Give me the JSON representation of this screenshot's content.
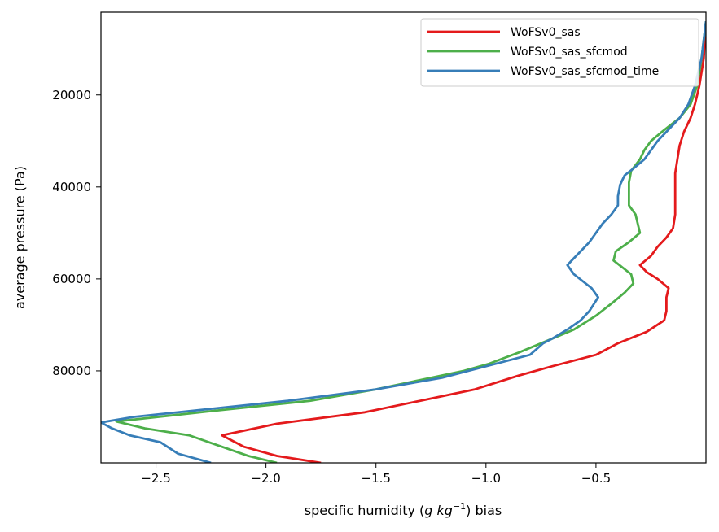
{
  "chart_data": {
    "type": "line",
    "title": "",
    "xlabel": "specific humidity (",
    "xlabel_unit": "g kg",
    "xlabel_exp": "−1",
    "xlabel_suffix": ") bias",
    "ylabel": "average pressure (Pa)",
    "xlim": [
      -2.75,
      -0.0
    ],
    "ylim": [
      100000,
      2000
    ],
    "xticks": [
      -2.5,
      -2.0,
      -1.5,
      -1.0,
      -0.5
    ],
    "xtick_labels": [
      "−2.5",
      "−2.0",
      "−1.5",
      "−1.0",
      "−0.5"
    ],
    "yticks": [
      20000,
      40000,
      60000,
      80000
    ],
    "ytick_labels": [
      "20000",
      "40000",
      "60000",
      "80000"
    ],
    "grid": false,
    "legend_position": "top-right",
    "series": [
      {
        "name": "WoFSv0_sas",
        "color": "#e41a1c",
        "points": [
          [
            -0.0,
            4000
          ],
          [
            -0.01,
            12000
          ],
          [
            -0.03,
            18000
          ],
          [
            -0.05,
            22000
          ],
          [
            -0.07,
            25000
          ],
          [
            -0.1,
            28000
          ],
          [
            -0.12,
            31000
          ],
          [
            -0.13,
            34000
          ],
          [
            -0.14,
            37000
          ],
          [
            -0.14,
            40000
          ],
          [
            -0.14,
            43000
          ],
          [
            -0.14,
            46000
          ],
          [
            -0.15,
            49000
          ],
          [
            -0.18,
            51000
          ],
          [
            -0.22,
            53000
          ],
          [
            -0.25,
            55000
          ],
          [
            -0.3,
            57000
          ],
          [
            -0.27,
            58500
          ],
          [
            -0.22,
            60000
          ],
          [
            -0.17,
            62000
          ],
          [
            -0.18,
            64000
          ],
          [
            -0.18,
            67000
          ],
          [
            -0.19,
            69000
          ],
          [
            -0.27,
            71500
          ],
          [
            -0.4,
            74000
          ],
          [
            -0.5,
            76500
          ],
          [
            -0.7,
            79000
          ],
          [
            -0.85,
            81000
          ],
          [
            -1.05,
            84000
          ],
          [
            -1.3,
            86500
          ],
          [
            -1.55,
            89000
          ],
          [
            -1.95,
            91500
          ],
          [
            -2.2,
            94000
          ],
          [
            -2.1,
            96500
          ],
          [
            -1.95,
            98500
          ],
          [
            -1.75,
            100000
          ]
        ]
      },
      {
        "name": "WoFSv0_sas_sfcmod",
        "color": "#4daf4a",
        "points": [
          [
            -0.0,
            4000
          ],
          [
            -0.02,
            12000
          ],
          [
            -0.04,
            18000
          ],
          [
            -0.07,
            22000
          ],
          [
            -0.12,
            25000
          ],
          [
            -0.2,
            28000
          ],
          [
            -0.25,
            30000
          ],
          [
            -0.28,
            32000
          ],
          [
            -0.3,
            34000
          ],
          [
            -0.34,
            36500
          ],
          [
            -0.35,
            39000
          ],
          [
            -0.35,
            42000
          ],
          [
            -0.35,
            44000
          ],
          [
            -0.32,
            46000
          ],
          [
            -0.31,
            48000
          ],
          [
            -0.3,
            50000
          ],
          [
            -0.35,
            52000
          ],
          [
            -0.41,
            54000
          ],
          [
            -0.42,
            56000
          ],
          [
            -0.38,
            57500
          ],
          [
            -0.34,
            59000
          ],
          [
            -0.33,
            61000
          ],
          [
            -0.37,
            63000
          ],
          [
            -0.42,
            65000
          ],
          [
            -0.5,
            68000
          ],
          [
            -0.6,
            71000
          ],
          [
            -0.7,
            73000
          ],
          [
            -0.85,
            76000
          ],
          [
            -0.99,
            78500
          ],
          [
            -1.1,
            80000
          ],
          [
            -1.3,
            82000
          ],
          [
            -1.5,
            84000
          ],
          [
            -1.8,
            86500
          ],
          [
            -2.2,
            88500
          ],
          [
            -2.45,
            89800
          ],
          [
            -2.68,
            91000
          ],
          [
            -2.55,
            92500
          ],
          [
            -2.35,
            94000
          ],
          [
            -2.2,
            96500
          ],
          [
            -2.08,
            98500
          ],
          [
            -1.95,
            100000
          ]
        ]
      },
      {
        "name": "WoFSv0_sas_sfcmod_time",
        "color": "#377eb8",
        "points": [
          [
            -0.0,
            4000
          ],
          [
            -0.02,
            12000
          ],
          [
            -0.05,
            18000
          ],
          [
            -0.08,
            22000
          ],
          [
            -0.12,
            25000
          ],
          [
            -0.18,
            28000
          ],
          [
            -0.22,
            30000
          ],
          [
            -0.25,
            32000
          ],
          [
            -0.28,
            34000
          ],
          [
            -0.33,
            36000
          ],
          [
            -0.37,
            37500
          ],
          [
            -0.39,
            39500
          ],
          [
            -0.4,
            42000
          ],
          [
            -0.4,
            44000
          ],
          [
            -0.43,
            46000
          ],
          [
            -0.47,
            48000
          ],
          [
            -0.5,
            50000
          ],
          [
            -0.53,
            52000
          ],
          [
            -0.57,
            54000
          ],
          [
            -0.6,
            55500
          ],
          [
            -0.63,
            57000
          ],
          [
            -0.6,
            59000
          ],
          [
            -0.56,
            60500
          ],
          [
            -0.52,
            62000
          ],
          [
            -0.49,
            64000
          ],
          [
            -0.53,
            67000
          ],
          [
            -0.57,
            69000
          ],
          [
            -0.63,
            71000
          ],
          [
            -0.7,
            73000
          ],
          [
            -0.74,
            74000
          ],
          [
            -0.8,
            76500
          ],
          [
            -1.0,
            79000
          ],
          [
            -1.2,
            81500
          ],
          [
            -1.5,
            84000
          ],
          [
            -1.9,
            86500
          ],
          [
            -2.3,
            88500
          ],
          [
            -2.6,
            90000
          ],
          [
            -2.75,
            91200
          ],
          [
            -2.7,
            92500
          ],
          [
            -2.62,
            94000
          ],
          [
            -2.48,
            95500
          ],
          [
            -2.4,
            98000
          ],
          [
            -2.25,
            100000
          ]
        ]
      }
    ]
  }
}
